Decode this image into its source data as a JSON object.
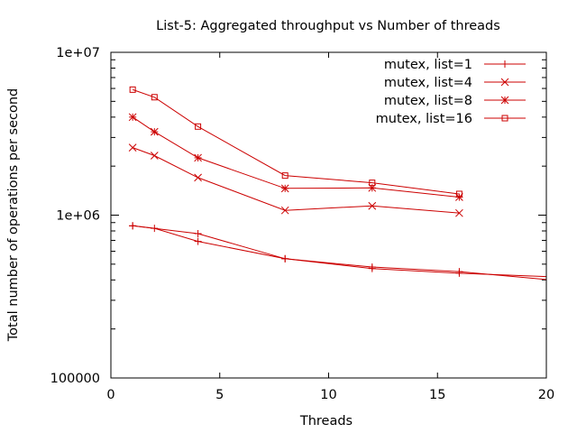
{
  "chart_data": {
    "type": "line",
    "title": "List-5: Aggregated throughput vs Number of threads",
    "xlabel": "Threads",
    "ylabel": "Total number of operations per second",
    "xlim": [
      0,
      20
    ],
    "ylim": [
      100000,
      10000000
    ],
    "yscale": "log",
    "grid": false,
    "legend_position": "top-right",
    "series_color": "#cc0000",
    "x_ticks": [
      {
        "value": 0,
        "label": "0"
      },
      {
        "value": 5,
        "label": "5"
      },
      {
        "value": 10,
        "label": "10"
      },
      {
        "value": 15,
        "label": "15"
      },
      {
        "value": 20,
        "label": "20"
      }
    ],
    "y_ticks": [
      {
        "value": 100000,
        "label": "100000"
      },
      {
        "value": 1000000,
        "label": "1e+06"
      },
      {
        "value": 10000000,
        "label": "1e+07"
      }
    ],
    "series": [
      {
        "name": "mutex, list=1",
        "marker": "plus",
        "points": [
          {
            "x": 1,
            "y": 860000
          },
          {
            "x": 2,
            "y": 830000
          },
          {
            "x": 4,
            "y": 690000
          },
          {
            "x": 8,
            "y": 540000
          },
          {
            "x": 12,
            "y": 480000
          },
          {
            "x": 16,
            "y": 450000
          },
          {
            "x": 24,
            "y": 360000
          }
        ]
      },
      {
        "name": "mutex, list=4",
        "marker": "cross",
        "points": [
          {
            "x": 1,
            "y": 2600000
          },
          {
            "x": 2,
            "y": 2320000
          },
          {
            "x": 4,
            "y": 1700000
          },
          {
            "x": 8,
            "y": 1070000
          },
          {
            "x": 12,
            "y": 1140000
          },
          {
            "x": 16,
            "y": 1030000
          }
        ]
      },
      {
        "name": "mutex, list=8",
        "marker": "star",
        "points": [
          {
            "x": 1,
            "y": 4000000
          },
          {
            "x": 2,
            "y": 3250000
          },
          {
            "x": 4,
            "y": 2250000
          },
          {
            "x": 8,
            "y": 1460000
          },
          {
            "x": 12,
            "y": 1470000
          },
          {
            "x": 16,
            "y": 1290000
          }
        ]
      },
      {
        "name": "mutex, list=16",
        "marker": "square",
        "points": [
          {
            "x": 1,
            "y": 5900000
          },
          {
            "x": 2,
            "y": 5300000
          },
          {
            "x": 4,
            "y": 3500000
          },
          {
            "x": 8,
            "y": 1750000
          },
          {
            "x": 12,
            "y": 1580000
          },
          {
            "x": 16,
            "y": 1350000
          }
        ]
      },
      {
        "name": "",
        "marker": "plus",
        "points": [
          {
            "x": 1,
            "y": 860000
          },
          {
            "x": 4,
            "y": 770000
          },
          {
            "x": 8,
            "y": 540000
          },
          {
            "x": 12,
            "y": 470000
          },
          {
            "x": 16,
            "y": 440000
          },
          {
            "x": 24,
            "y": 400000
          }
        ]
      }
    ]
  }
}
